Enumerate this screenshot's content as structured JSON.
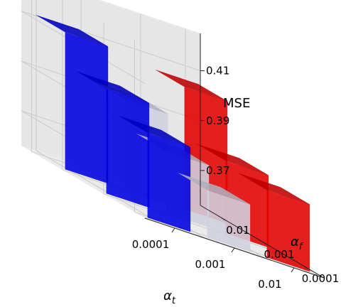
{
  "chart_data": {
    "type": "bar3d",
    "title": "",
    "x_axis": {
      "label": "α",
      "label_sub": "t",
      "categories": [
        "0.0001",
        "0.001",
        "0.01"
      ]
    },
    "y_axis": {
      "label": "α",
      "label_sub": "f",
      "categories": [
        "0.0001",
        "0.001",
        "0.01"
      ]
    },
    "z_axis": {
      "label": "MSE",
      "ticks": [
        "0.37",
        "0.39",
        "0.41"
      ],
      "tick_values": [
        0.37,
        0.39,
        0.41
      ],
      "range": [
        0.356,
        0.425
      ]
    },
    "grid": true,
    "colors_by_alpha_t": {
      "0.0001": "#0000ee",
      "0.001": "#dcdcec",
      "0.01": "#ee0000"
    },
    "bars": [
      {
        "alpha_t": "0.0001",
        "alpha_f": "0.0001",
        "mse": 0.39
      },
      {
        "alpha_t": "0.0001",
        "alpha_f": "0.001",
        "mse": 0.398
      },
      {
        "alpha_t": "0.0001",
        "alpha_f": "0.01",
        "mse": 0.411
      },
      {
        "alpha_t": "0.001",
        "alpha_f": "0.0001",
        "mse": 0.375
      },
      {
        "alpha_t": "0.001",
        "alpha_f": "0.001",
        "mse": 0.381
      },
      {
        "alpha_t": "0.001",
        "alpha_f": "0.01",
        "mse": 0.392
      },
      {
        "alpha_t": "0.01",
        "alpha_f": "0.0001",
        "mse": 0.383
      },
      {
        "alpha_t": "0.01",
        "alpha_f": "0.001",
        "mse": 0.385
      },
      {
        "alpha_t": "0.01",
        "alpha_f": "0.01",
        "mse": 0.405
      }
    ]
  }
}
